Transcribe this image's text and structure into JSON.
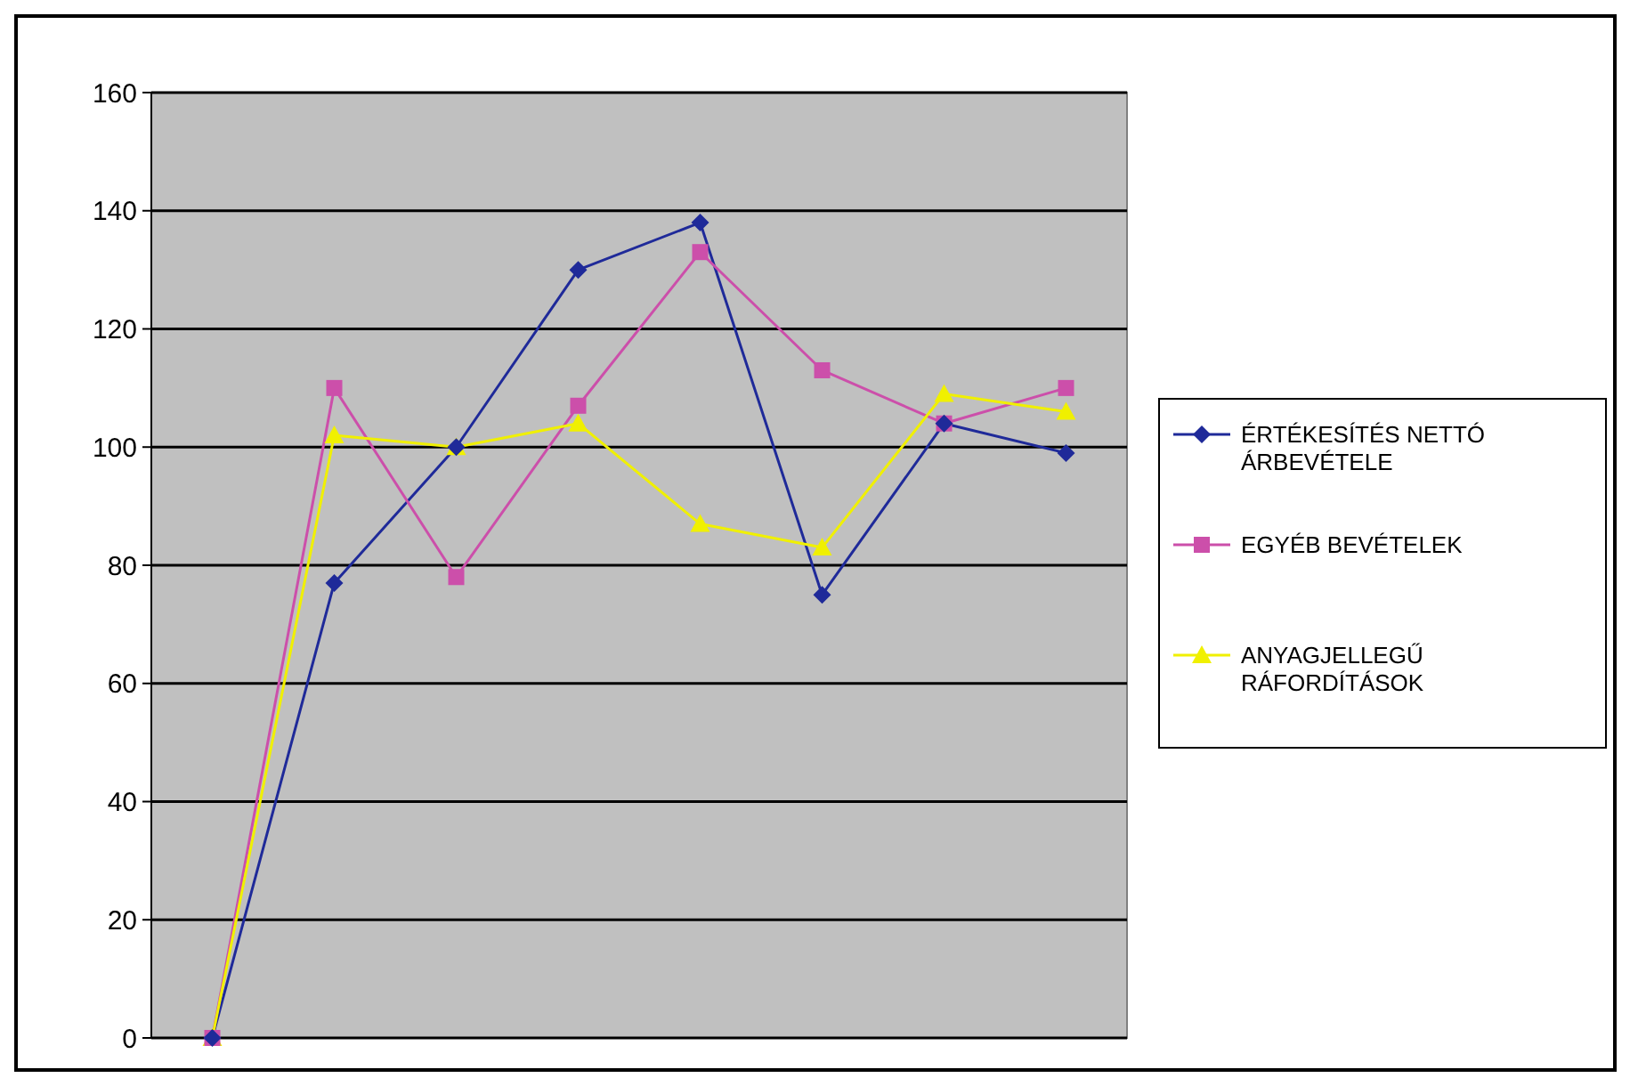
{
  "chart_data": {
    "type": "line",
    "categories": [
      null,
      null,
      null,
      null,
      null,
      null,
      null,
      null
    ],
    "series": [
      {
        "name": "ÉRTÉKESÍTÉS NETTÓ ÁRBEVÉTELE",
        "color": "#1f2a99",
        "marker": "diamond",
        "values": [
          0,
          77,
          100,
          130,
          138,
          75,
          104,
          99
        ]
      },
      {
        "name": "EGYÉB BEVÉTELEK",
        "color": "#cc4faa",
        "marker": "square",
        "values": [
          0,
          110,
          78,
          107,
          133,
          113,
          104,
          110
        ]
      },
      {
        "name": "ANYAGJELLEGŰ RÁFORDÍTÁSOK",
        "color": "#f0f000",
        "marker": "triangle",
        "values": [
          0,
          102,
          100,
          104,
          87,
          83,
          109,
          106
        ]
      }
    ],
    "ylim": [
      0,
      160
    ],
    "yticks": [
      0,
      20,
      40,
      60,
      80,
      100,
      120,
      140,
      160
    ],
    "grid": "y",
    "legend": "right",
    "tick_labels": "y"
  }
}
